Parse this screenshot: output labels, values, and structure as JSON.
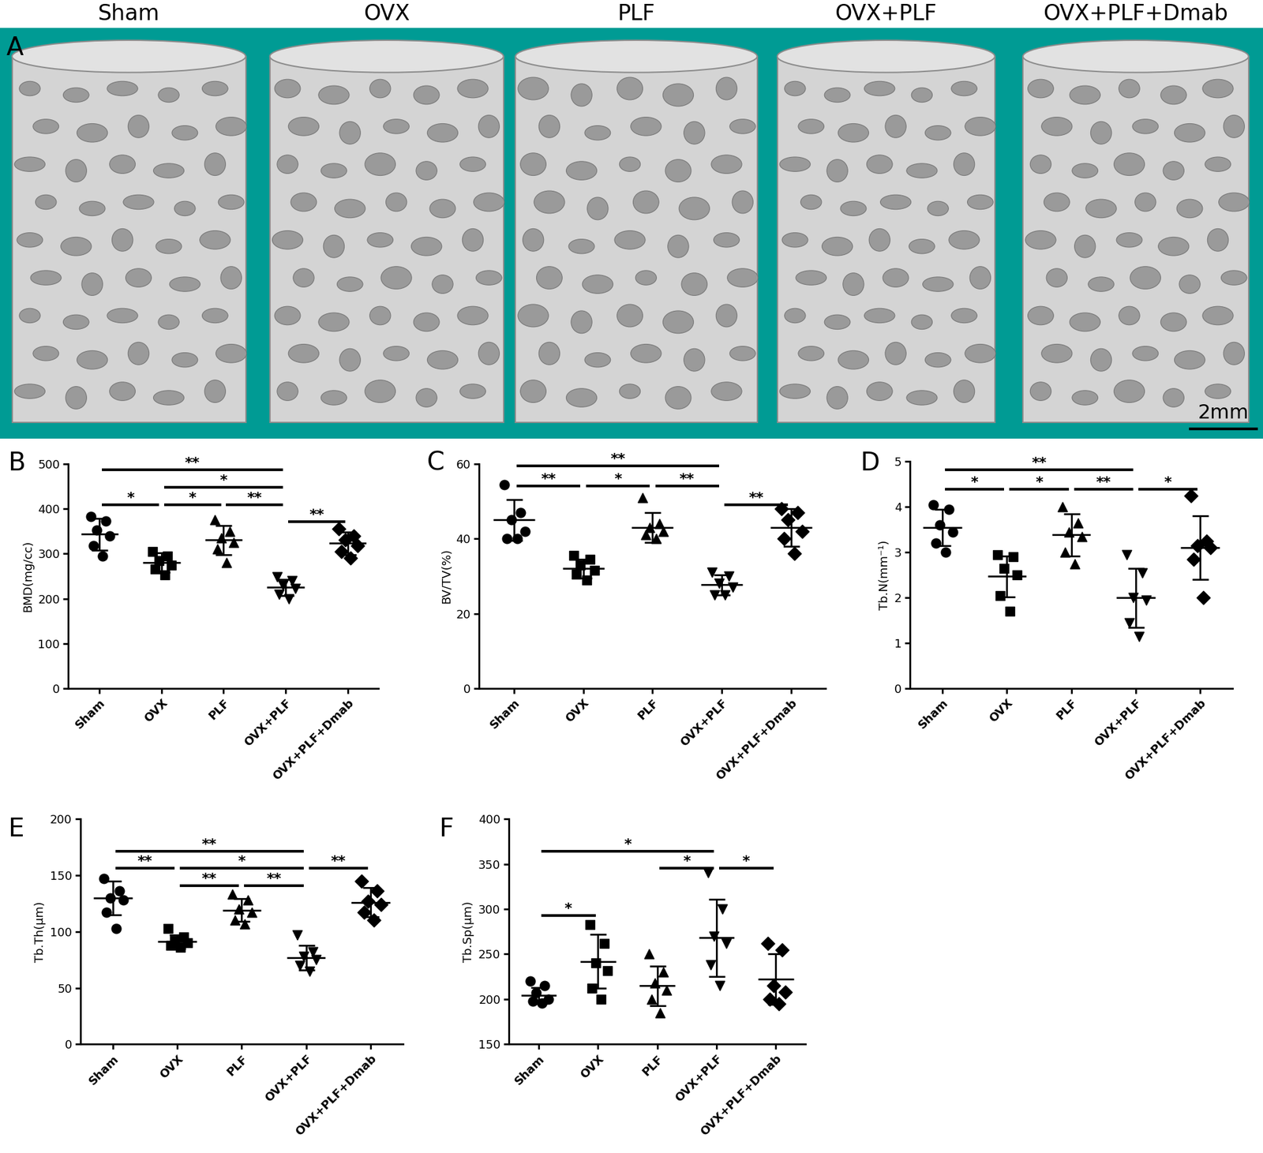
{
  "images": {
    "label": "A",
    "titles": [
      "Sham",
      "OVX",
      "PLF",
      "OVX+PLF",
      "OVX+PLF+Dmab"
    ],
    "scale_bar": "2mm"
  },
  "chart_data": [
    {
      "type": "scatter",
      "panel": "B",
      "ylabel": "BMD(mg/cc)",
      "categories": [
        "Sham",
        "OVX",
        "PLF",
        "OVX+PLF",
        "OVX+PLF+Dmab"
      ],
      "ylim": [
        0,
        500
      ],
      "yticks": [
        0,
        100,
        200,
        300,
        400,
        500
      ],
      "series": [
        {
          "marker": "circle",
          "color": "#000000",
          "points": [
            383,
            372,
            352,
            340,
            318,
            295
          ],
          "mean": 343,
          "sd": 35
        },
        {
          "marker": "square",
          "color": "#000000",
          "points": [
            305,
            295,
            285,
            275,
            265,
            252
          ],
          "mean": 280,
          "sd": 22
        },
        {
          "marker": "triangle_up",
          "color": "#000000",
          "points": [
            375,
            350,
            335,
            325,
            310,
            280
          ],
          "mean": 330,
          "sd": 32
        },
        {
          "marker": "triangle_down",
          "color": "#000000",
          "points": [
            248,
            240,
            230,
            222,
            210,
            200
          ],
          "mean": 225,
          "sd": 18
        },
        {
          "marker": "diamond",
          "color": "#000000",
          "points": [
            355,
            340,
            330,
            318,
            305,
            290
          ],
          "mean": 323,
          "sd": 25
        }
      ],
      "significance": [
        {
          "groups": [
            0,
            3
          ],
          "label": "**",
          "y": 487
        },
        {
          "groups": [
            1,
            3
          ],
          "label": "*",
          "y": 448
        },
        {
          "groups": [
            0,
            1
          ],
          "label": "*",
          "y": 408
        },
        {
          "groups": [
            1,
            2
          ],
          "label": "*",
          "y": 408
        },
        {
          "groups": [
            2,
            3
          ],
          "label": "**",
          "y": 408
        },
        {
          "groups": [
            3,
            4
          ],
          "label": "**",
          "y": 371
        }
      ]
    },
    {
      "type": "scatter",
      "panel": "C",
      "ylabel": "BV/TV(%)",
      "categories": [
        "Sham",
        "OVX",
        "PLF",
        "OVX+PLF",
        "OVX+PLF+Dmab"
      ],
      "ylim": [
        0,
        60
      ],
      "yticks": [
        0,
        20,
        40,
        60
      ],
      "series": [
        {
          "marker": "circle",
          "color": "#000000",
          "points": [
            54.5,
            47,
            45,
            42,
            40,
            40
          ],
          "mean": 45,
          "sd": 5.5
        },
        {
          "marker": "square",
          "color": "#000000",
          "points": [
            35.5,
            34.5,
            33,
            31.5,
            30.5,
            29
          ],
          "mean": 32,
          "sd": 2.5
        },
        {
          "marker": "triangle_up",
          "color": "#000000",
          "points": [
            51,
            44,
            43,
            42,
            41,
            40
          ],
          "mean": 43,
          "sd": 4
        },
        {
          "marker": "triangle_down",
          "color": "#000000",
          "points": [
            31,
            30,
            28,
            27,
            25,
            25
          ],
          "mean": 27.7,
          "sd": 2.7
        },
        {
          "marker": "diamond",
          "color": "#000000",
          "points": [
            48,
            47,
            45,
            42,
            40,
            36
          ],
          "mean": 43,
          "sd": 5
        }
      ],
      "significance": [
        {
          "groups": [
            0,
            3
          ],
          "label": "**",
          "y": 59.5
        },
        {
          "groups": [
            0,
            1
          ],
          "label": "**",
          "y": 54
        },
        {
          "groups": [
            1,
            2
          ],
          "label": "*",
          "y": 54
        },
        {
          "groups": [
            2,
            3
          ],
          "label": "**",
          "y": 54
        },
        {
          "groups": [
            3,
            4
          ],
          "label": "**",
          "y": 49
        }
      ]
    },
    {
      "type": "scatter",
      "panel": "D",
      "ylabel": "Tb.N(mm⁻¹)",
      "categories": [
        "Sham",
        "OVX",
        "PLF",
        "OVX+PLF",
        "OVX+PLF+Dmab"
      ],
      "ylim": [
        0,
        5
      ],
      "yticks": [
        0,
        1,
        2,
        3,
        4,
        5
      ],
      "series": [
        {
          "marker": "circle",
          "color": "#000000",
          "points": [
            4.05,
            3.95,
            3.6,
            3.45,
            3.2,
            3.0
          ],
          "mean": 3.55,
          "sd": 0.4
        },
        {
          "marker": "square",
          "color": "#000000",
          "points": [
            2.95,
            2.9,
            2.65,
            2.5,
            2.05,
            1.7
          ],
          "mean": 2.47,
          "sd": 0.45
        },
        {
          "marker": "triangle_up",
          "color": "#000000",
          "points": [
            4.0,
            3.65,
            3.45,
            3.35,
            3.0,
            2.75
          ],
          "mean": 3.38,
          "sd": 0.47
        },
        {
          "marker": "triangle_down",
          "color": "#000000",
          "points": [
            2.95,
            2.55,
            2.0,
            1.95,
            1.45,
            1.15
          ],
          "mean": 2.0,
          "sd": 0.65
        },
        {
          "marker": "diamond",
          "color": "#000000",
          "points": [
            4.25,
            3.25,
            3.15,
            3.1,
            2.85,
            2.0
          ],
          "mean": 3.1,
          "sd": 0.7
        }
      ],
      "significance": [
        {
          "groups": [
            0,
            3
          ],
          "label": "**",
          "y": 4.82
        },
        {
          "groups": [
            0,
            1
          ],
          "label": "*",
          "y": 4.38
        },
        {
          "groups": [
            1,
            2
          ],
          "label": "*",
          "y": 4.38
        },
        {
          "groups": [
            2,
            3
          ],
          "label": "**",
          "y": 4.38
        },
        {
          "groups": [
            3,
            4
          ],
          "label": "*",
          "y": 4.38
        }
      ]
    },
    {
      "type": "scatter",
      "panel": "E",
      "ylabel": "Tb.Th(μm)",
      "categories": [
        "Sham",
        "OVX",
        "PLF",
        "OVX+PLF",
        "OVX+PLF+Dmab"
      ],
      "ylim": [
        0,
        200
      ],
      "yticks": [
        0,
        50,
        100,
        150,
        200
      ],
      "series": [
        {
          "marker": "circle",
          "color": "#000000",
          "points": [
            147,
            136,
            130,
            128,
            117,
            103
          ],
          "mean": 130,
          "sd": 15
        },
        {
          "marker": "square",
          "color": "#000000",
          "points": [
            103,
            95,
            92,
            90,
            88,
            86
          ],
          "mean": 91,
          "sd": 6
        },
        {
          "marker": "triangle_up",
          "color": "#000000",
          "points": [
            133,
            128,
            120,
            117,
            110,
            107
          ],
          "mean": 119,
          "sd": 10
        },
        {
          "marker": "triangle_down",
          "color": "#000000",
          "points": [
            97,
            82,
            78,
            75,
            70,
            65
          ],
          "mean": 77,
          "sd": 11
        },
        {
          "marker": "diamond",
          "color": "#000000",
          "points": [
            145,
            136,
            127,
            124,
            117,
            110
          ],
          "mean": 126,
          "sd": 13
        }
      ],
      "significance": [
        {
          "groups": [
            0,
            3
          ],
          "label": "**",
          "y": 171
        },
        {
          "groups": [
            0,
            1
          ],
          "label": "**",
          "y": 156
        },
        {
          "groups": [
            1,
            3
          ],
          "label": "*",
          "y": 156
        },
        {
          "groups": [
            1,
            2
          ],
          "label": "**",
          "y": 141
        },
        {
          "groups": [
            2,
            3
          ],
          "label": "**",
          "y": 141
        },
        {
          "groups": [
            3,
            4
          ],
          "label": "**",
          "y": 156
        }
      ]
    },
    {
      "type": "scatter",
      "panel": "F",
      "ylabel": "Tb.Sp(μm)",
      "categories": [
        "Sham",
        "OVX",
        "PLF",
        "OVX+PLF",
        "OVX+PLF+Dmab"
      ],
      "ylim": [
        150,
        400
      ],
      "yticks": [
        150,
        200,
        250,
        300,
        350,
        400
      ],
      "series": [
        {
          "marker": "circle",
          "color": "#000000",
          "points": [
            220,
            215,
            207,
            200,
            198,
            196
          ],
          "mean": 204,
          "sd": 9
        },
        {
          "marker": "square",
          "color": "#000000",
          "points": [
            283,
            262,
            240,
            232,
            212,
            200
          ],
          "mean": 242,
          "sd": 30
        },
        {
          "marker": "triangle_up",
          "color": "#000000",
          "points": [
            250,
            230,
            218,
            210,
            200,
            185
          ],
          "mean": 215,
          "sd": 22
        },
        {
          "marker": "triangle_down",
          "color": "#000000",
          "points": [
            340,
            300,
            270,
            262,
            238,
            215
          ],
          "mean": 268,
          "sd": 43
        },
        {
          "marker": "diamond",
          "color": "#000000",
          "points": [
            262,
            255,
            215,
            208,
            200,
            195
          ],
          "mean": 222,
          "sd": 28
        }
      ],
      "significance": [
        {
          "groups": [
            0,
            3
          ],
          "label": "*",
          "y": 364
        },
        {
          "groups": [
            2,
            3
          ],
          "label": "*",
          "y": 345
        },
        {
          "groups": [
            3,
            4
          ],
          "label": "*",
          "y": 345
        },
        {
          "groups": [
            0,
            1
          ],
          "label": "*",
          "y": 293
        }
      ]
    }
  ]
}
